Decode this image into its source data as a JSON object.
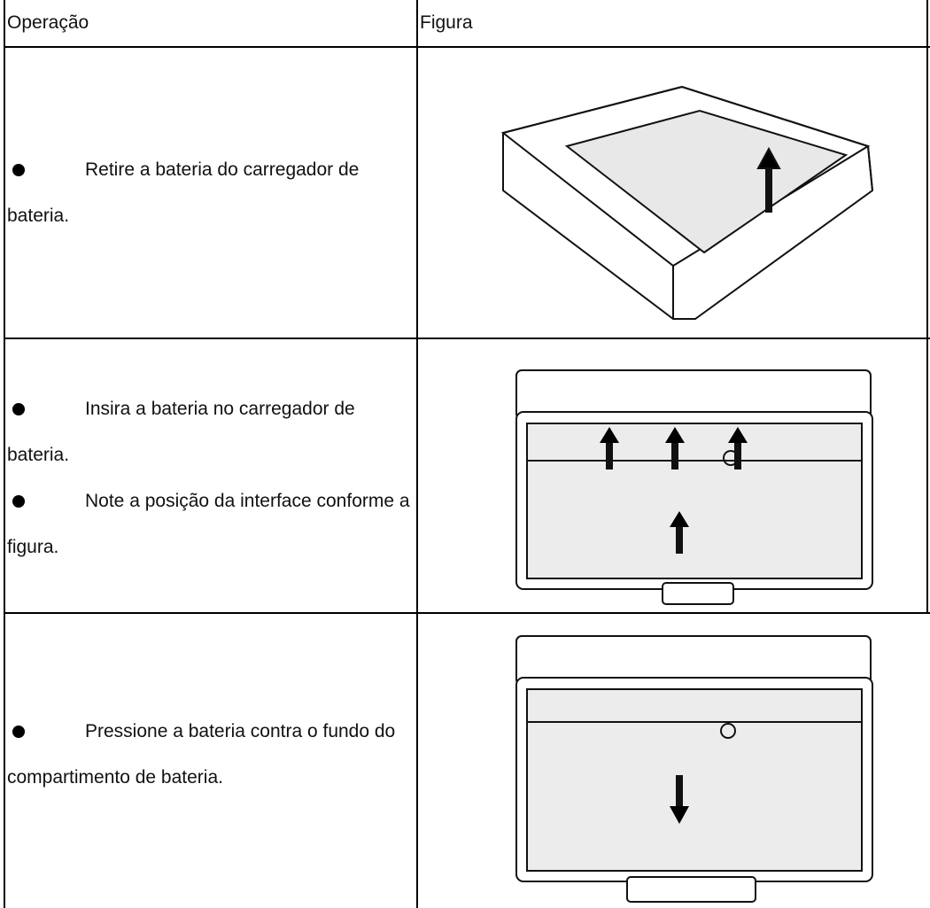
{
  "table": {
    "header": [
      "Operação",
      "Figura"
    ],
    "rows": [
      {
        "operation": [
          "Retire a bateria do carregador de bateria."
        ]
      },
      {
        "operation": [
          "Insira a bateria no carregador de bateria.",
          "Note a posição da interface conforme a figura."
        ]
      },
      {
        "operation": [
          "Pressione a bateria contra o fundo do compartimento de bateria."
        ]
      }
    ]
  }
}
